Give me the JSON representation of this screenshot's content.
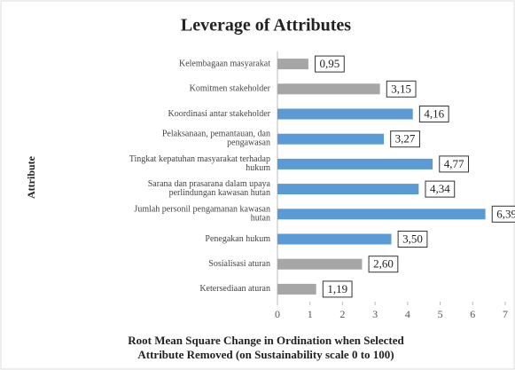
{
  "chart_data": {
    "type": "barh",
    "title": "Leverage of Attributes",
    "ylabel": "Attribute",
    "xlabel": [
      "Root Mean Square Change in Ordination when Selected",
      "Attribute Removed (on Sustainability scale 0 to 100)"
    ],
    "categories": [
      "Kelembagaan masyarakat",
      "Komitmen stakeholder",
      "Koordinasi antar stakeholder",
      "Pelaksanaan, pemantauan, dan pengawasan",
      "Tingkat kepatuhan masyarakat terhadap hukum",
      "Sarana dan prasarana dalam upaya perlindungan kawasan hutan",
      "Jumlah personil pengamanan kawasan hutan",
      "Penegakan hukum",
      "Sosialisasi aturan",
      "Ketersediaan aturan"
    ],
    "values": [
      0.95,
      3.15,
      4.16,
      3.27,
      4.77,
      4.34,
      6.39,
      3.5,
      2.6,
      1.19
    ],
    "value_labels": [
      "0,95",
      "3,15",
      "4,16",
      "3,27",
      "4,77",
      "4,34",
      "6,39",
      "3,50",
      "2,60",
      "1,19"
    ],
    "colors": [
      "#a6a6a6",
      "#a6a6a6",
      "#5b9bd5",
      "#5b9bd5",
      "#5b9bd5",
      "#5b9bd5",
      "#5b9bd5",
      "#5b9bd5",
      "#a6a6a6",
      "#a6a6a6"
    ],
    "xlim": [
      0,
      7
    ],
    "xticks": [
      0,
      1,
      2,
      3,
      4,
      5,
      6,
      7
    ]
  }
}
